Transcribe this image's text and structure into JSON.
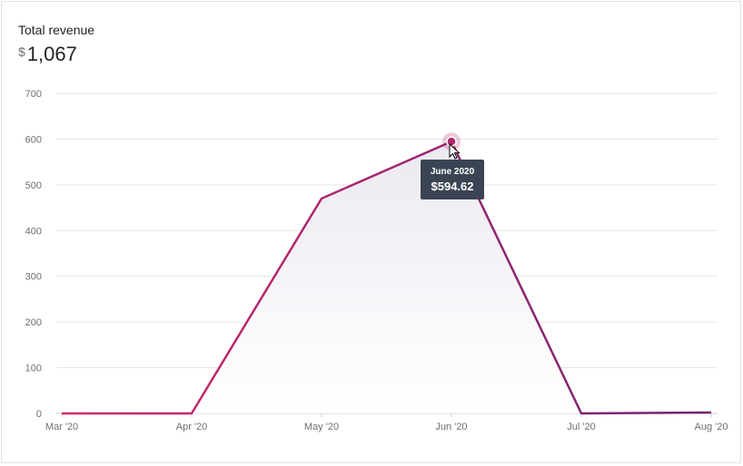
{
  "header": {
    "title": "Total revenue",
    "currency_symbol": "$",
    "total": "1,067"
  },
  "tooltip": {
    "label": "June 2020",
    "value": "$594.62"
  },
  "colors": {
    "line_start": "#d6276a",
    "line_end": "#6e2472",
    "grid": "#e6e6e6",
    "axis": "#c8c8d8",
    "area_fill": "#ece8f0",
    "marker": "#b0286a",
    "tooltip_bg": "#3b4452"
  },
  "chart_data": {
    "type": "area",
    "categories": [
      "Mar '20",
      "Apr '20",
      "May '20",
      "Jun '20",
      "Jul '20",
      "Aug '20"
    ],
    "values": [
      0,
      0,
      470,
      594.62,
      0,
      2
    ],
    "y_ticks": [
      0,
      100,
      200,
      300,
      400,
      500,
      600,
      700
    ],
    "ylim": [
      0,
      700
    ],
    "grid": true,
    "highlighted_index": 3
  }
}
